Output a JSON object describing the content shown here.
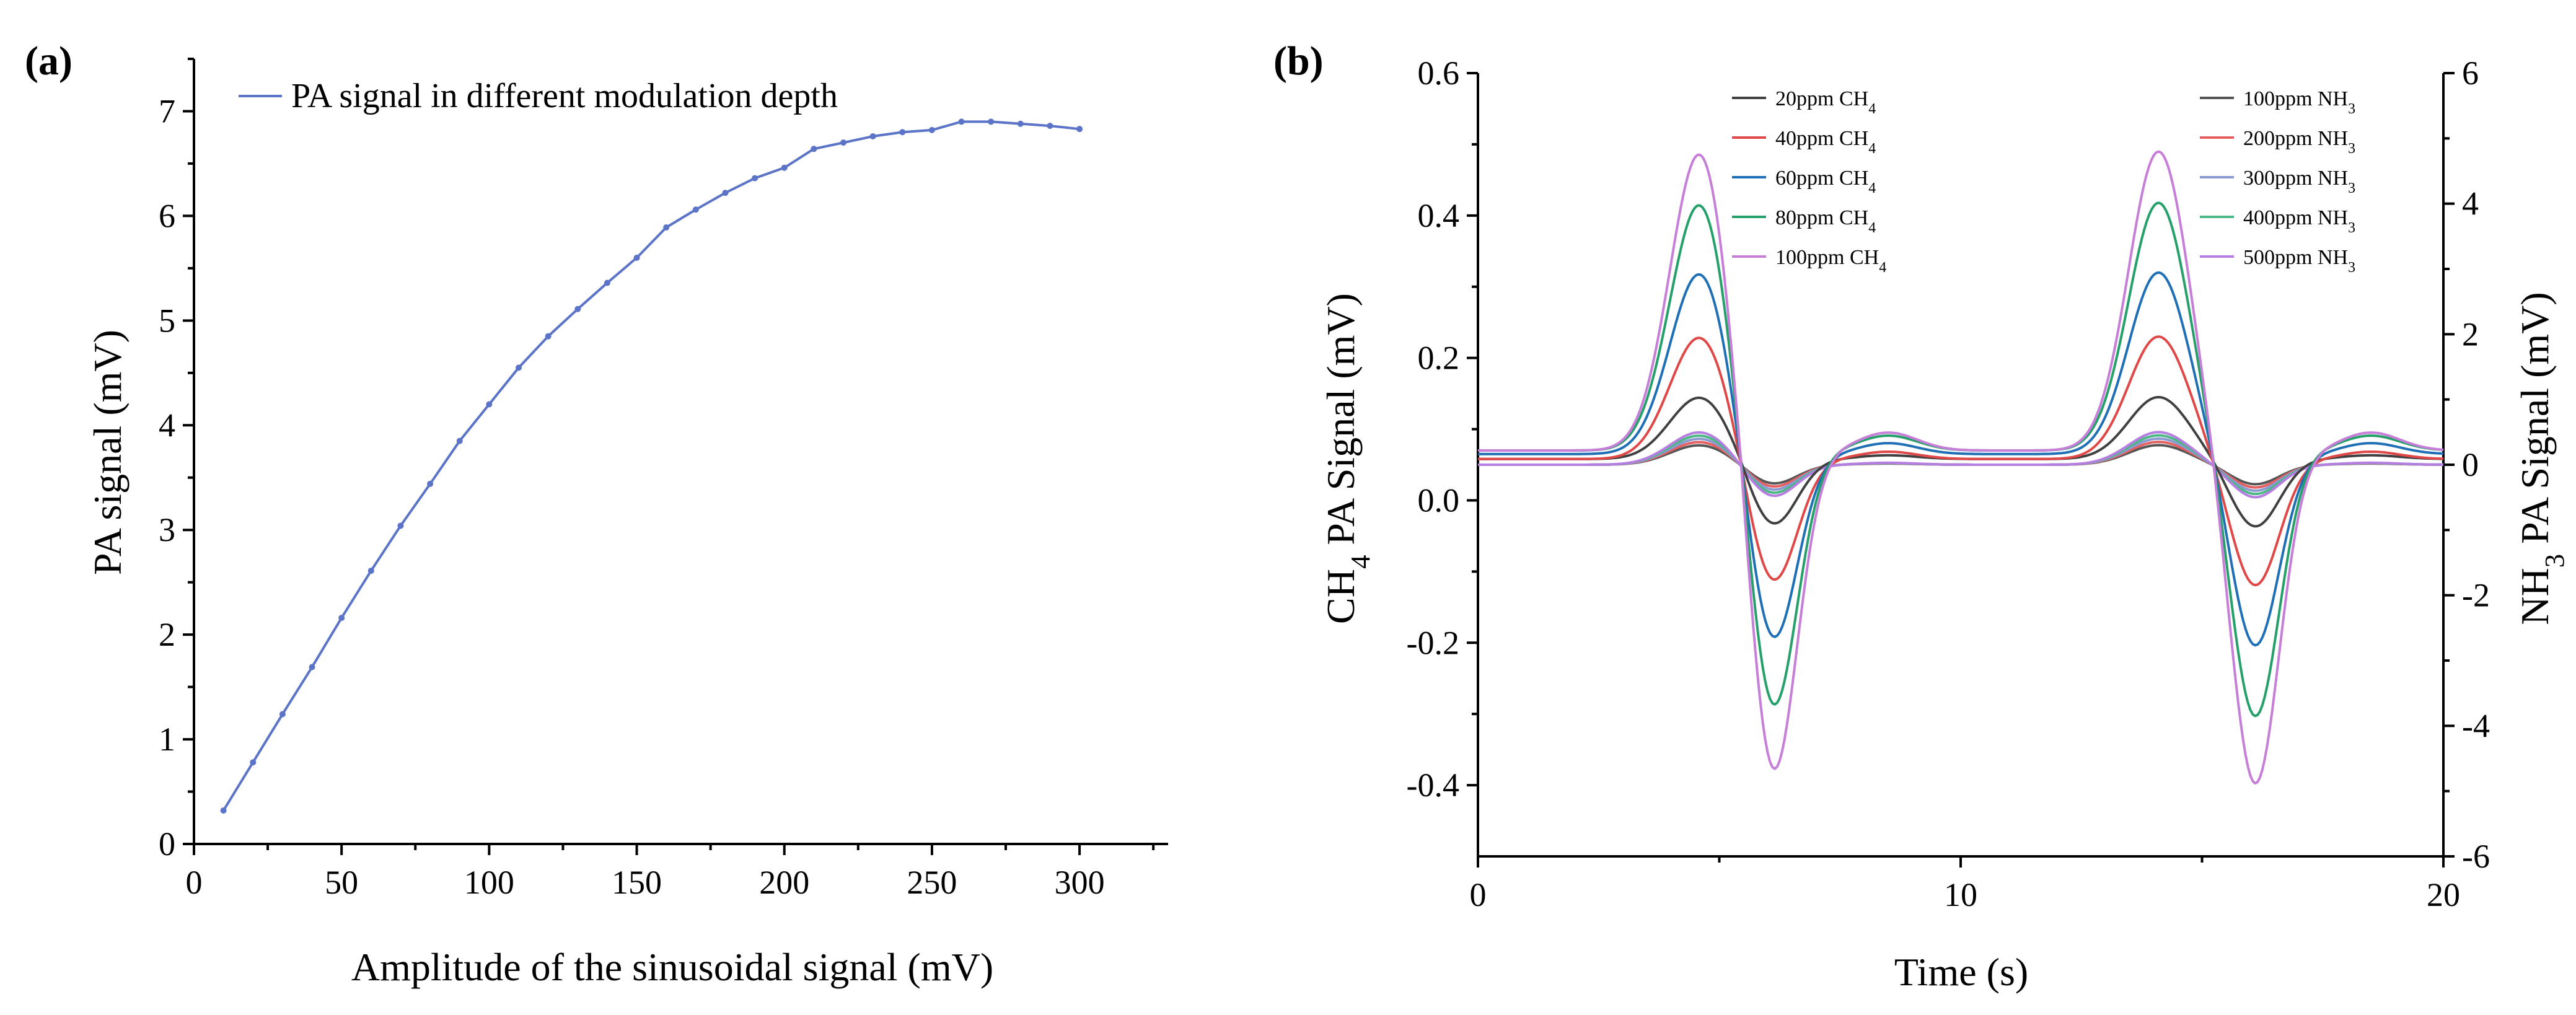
{
  "chart_data": [
    {
      "panel_label": "(a)",
      "type": "line",
      "title": "",
      "xlabel": "Amplitude of the sinusoidal signal (mV)",
      "ylabel": "PA signal (mV)",
      "xlim": [
        0,
        330
      ],
      "ylim": [
        0,
        7.5
      ],
      "xticks": [
        0,
        50,
        100,
        150,
        200,
        250,
        300
      ],
      "yticks": [
        0,
        1,
        2,
        3,
        4,
        5,
        6,
        7
      ],
      "legend": "top-left",
      "grid": false,
      "series": [
        {
          "name": "PA signal in different modulation depth",
          "color": "#5b74c8",
          "x": [
            10,
            20,
            30,
            40,
            50,
            60,
            70,
            80,
            90,
            100,
            110,
            120,
            130,
            140,
            150,
            160,
            170,
            180,
            190,
            200,
            210,
            220,
            230,
            240,
            250,
            260,
            270,
            280,
            290,
            300
          ],
          "y": [
            0.32,
            0.78,
            1.24,
            1.69,
            2.16,
            2.61,
            3.04,
            3.44,
            3.85,
            4.2,
            4.55,
            4.85,
            5.11,
            5.36,
            5.6,
            5.89,
            6.06,
            6.22,
            6.36,
            6.46,
            6.64,
            6.7,
            6.76,
            6.8,
            6.82,
            6.9,
            6.9,
            6.88,
            6.86,
            6.83
          ]
        }
      ]
    },
    {
      "panel_label": "(b)",
      "type": "line",
      "title": "",
      "xlabel": "Time (s)",
      "ylabel": {
        "pre": "CH",
        "sub": "4",
        "post": " PA Signal (mV)"
      },
      "y2label": {
        "pre": "NH",
        "sub": "3",
        "post": " PA Signal (mV)"
      },
      "xlim": [
        0,
        20
      ],
      "ylim": [
        -0.5,
        0.6
      ],
      "y2lim": [
        -6,
        6
      ],
      "xticks": [
        0,
        10,
        20
      ],
      "yticks": [
        -0.4,
        -0.2,
        0.0,
        0.2,
        0.4,
        0.6
      ],
      "ytick_labels": [
        "-0.4",
        "-0.2",
        "0.0",
        "0.2",
        "0.4",
        "0.6"
      ],
      "y2ticks": [
        -6,
        -4,
        -2,
        0,
        2,
        4,
        6
      ],
      "y2tick_labels": [
        "-6",
        "-4",
        "-2",
        "0",
        "2",
        "4",
        "6"
      ],
      "legend": "top (two columns)",
      "grid": false,
      "series": [
        {
          "name": {
            "pre": "20ppm CH",
            "sub": "4"
          },
          "axis": "left",
          "color": "#404040",
          "baseline": 0.058,
          "peak": 0.145,
          "trough": -0.037
        },
        {
          "name": {
            "pre": "40ppm CH",
            "sub": "4"
          },
          "axis": "left",
          "color": "#e04848",
          "baseline": 0.058,
          "peak": 0.23,
          "trough": -0.12
        },
        {
          "name": {
            "pre": "60ppm CH",
            "sub": "4"
          },
          "axis": "left",
          "color": "#1e6fb5",
          "baseline": 0.065,
          "peak": 0.32,
          "trough": -0.205
        },
        {
          "name": {
            "pre": "80ppm CH",
            "sub": "4"
          },
          "axis": "left",
          "color": "#26a06a",
          "baseline": 0.07,
          "peak": 0.418,
          "trough": -0.305
        },
        {
          "name": {
            "pre": "100ppm CH",
            "sub": "4"
          },
          "axis": "left",
          "color": "#c77ed8",
          "baseline": 0.07,
          "peak": 0.49,
          "trough": -0.4
        },
        {
          "name": {
            "pre": "100ppm NH",
            "sub": "3"
          },
          "axis": "right",
          "color": "#555555",
          "baseline": 0.0,
          "peak": 0.3,
          "trough": -0.3
        },
        {
          "name": {
            "pre": "200ppm NH",
            "sub": "3"
          },
          "axis": "right",
          "color": "#e46060",
          "baseline": 0.0,
          "peak": 0.35,
          "trough": -0.35
        },
        {
          "name": {
            "pre": "300ppm NH",
            "sub": "3"
          },
          "axis": "right",
          "color": "#8a9ad0",
          "baseline": 0.0,
          "peak": 0.4,
          "trough": -0.4
        },
        {
          "name": {
            "pre": "400ppm NH",
            "sub": "3"
          },
          "axis": "right",
          "color": "#4cb886",
          "baseline": 0.0,
          "peak": 0.45,
          "trough": -0.45
        },
        {
          "name": {
            "pre": "500ppm NH",
            "sub": "3"
          },
          "axis": "right",
          "color": "#b57ee0",
          "baseline": 0.0,
          "peak": 0.5,
          "trough": -0.5
        }
      ],
      "waveform": {
        "description": "Second-harmonic style pulses",
        "peak_times_s": [
          4.6,
          14.1
        ],
        "trough_times_s": [
          6.1,
          16.1
        ],
        "secondary_bump_times_s": [
          8.5,
          18.5
        ]
      }
    }
  ]
}
